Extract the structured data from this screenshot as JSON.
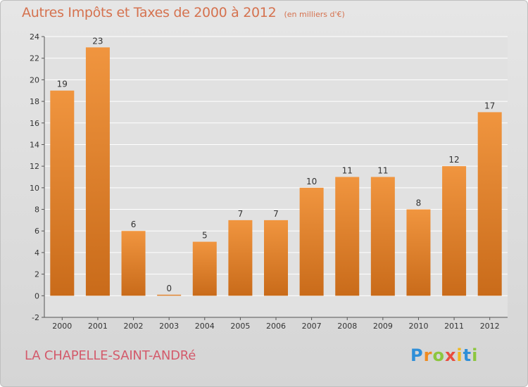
{
  "chart_data": {
    "type": "bar",
    "title": "Autres Impôts et Taxes de 2000 à 2012",
    "subtitle": "(en milliers d'€)",
    "categories": [
      "2000",
      "2001",
      "2002",
      "2003",
      "2004",
      "2005",
      "2006",
      "2007",
      "2008",
      "2009",
      "2010",
      "2011",
      "2012"
    ],
    "values": [
      19,
      23,
      6,
      0,
      5,
      7,
      7,
      10,
      11,
      11,
      8,
      12,
      17
    ],
    "ylim": [
      -2,
      24
    ],
    "yticks": [
      -2,
      0,
      2,
      4,
      6,
      8,
      10,
      12,
      14,
      16,
      18,
      20,
      22,
      24
    ],
    "grid": true,
    "bar_color": "#f0953f",
    "bar_color_dark": "#c96b1a",
    "grid_color": "#ffffff"
  },
  "footer": {
    "place": "LA CHAPELLE-SAINT-ANDRé",
    "logo": [
      "P",
      "r",
      "o",
      "x",
      "i",
      "t",
      "i"
    ],
    "logo_colors": [
      "#2f8fd8",
      "#f08a1f",
      "#8cc63e",
      "#e94d3f",
      "#f0b81f",
      "#2f8fd8",
      "#8cc63e"
    ]
  }
}
